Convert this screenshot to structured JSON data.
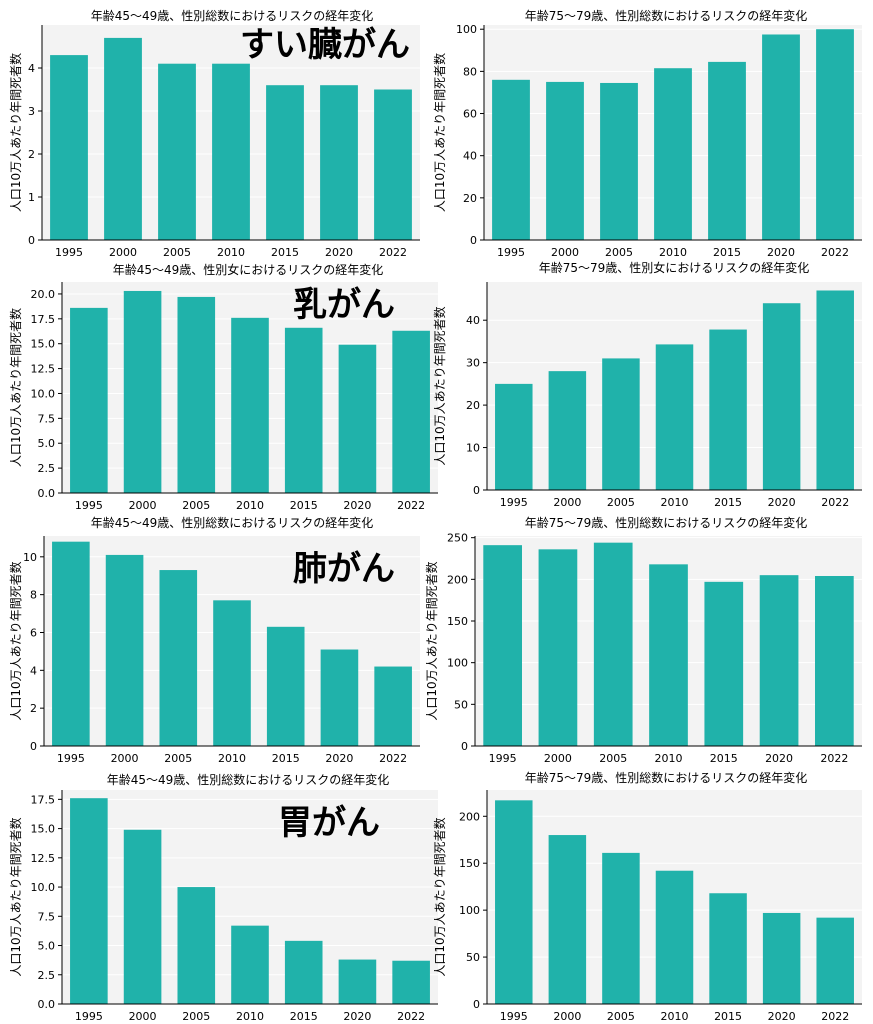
{
  "overlay_labels": {
    "pancreatic": "すい臓がん",
    "breast": "乳がん",
    "lung": "肺がん",
    "stomach": "胃がん"
  },
  "colors": {
    "bar": "#20b2aa",
    "plot_bg": "#f3f3f3",
    "grid": "#ffffff",
    "axis": "#000000"
  },
  "chart_data": [
    {
      "type": "bar",
      "title": "年齢45～49歳、性別総数におけるリスクの経年変化",
      "ylabel": "人口10万人あたり年間死者数",
      "categories": [
        "1995",
        "2000",
        "2005",
        "2010",
        "2015",
        "2020",
        "2022"
      ],
      "values": [
        4.3,
        4.7,
        4.1,
        4.1,
        3.6,
        3.6,
        3.5
      ],
      "ylim": [
        0,
        5.0
      ],
      "yticks": [
        0,
        1,
        2,
        3,
        4
      ],
      "ytick_labels": [
        "0",
        "1",
        "2",
        "3",
        "4"
      ],
      "grid": true
    },
    {
      "type": "bar",
      "title": "年齢75～79歳、性別総数におけるリスクの経年変化",
      "ylabel": "人口10万人あたり年間死者数",
      "categories": [
        "1995",
        "2000",
        "2005",
        "2010",
        "2015",
        "2020",
        "2022"
      ],
      "values": [
        76,
        75,
        74.5,
        81.5,
        84.5,
        97.5,
        100
      ],
      "ylim": [
        0,
        102
      ],
      "yticks": [
        0,
        20,
        40,
        60,
        80,
        100
      ],
      "ytick_labels": [
        "0",
        "20",
        "40",
        "60",
        "80",
        "100"
      ],
      "grid": true
    },
    {
      "type": "bar",
      "title": "年齢45～49歳、性別女におけるリスクの経年変化",
      "ylabel": "人口10万人あたり年間死者数",
      "categories": [
        "1995",
        "2000",
        "2005",
        "2010",
        "2015",
        "2020",
        "2022"
      ],
      "values": [
        18.6,
        20.3,
        19.7,
        17.6,
        16.6,
        14.9,
        16.3
      ],
      "ylim": [
        0,
        21.2
      ],
      "yticks": [
        0,
        2.5,
        5,
        7.5,
        10,
        12.5,
        15,
        17.5,
        20
      ],
      "ytick_labels": [
        "0.0",
        "2.5",
        "5.0",
        "7.5",
        "10.0",
        "12.5",
        "15.0",
        "17.5",
        "20.0"
      ],
      "grid": true
    },
    {
      "type": "bar",
      "title": "年齢75～79歳、性別女におけるリスクの経年変化",
      "ylabel": "人口10万人あたり年間死者数",
      "categories": [
        "1995",
        "2000",
        "2005",
        "2010",
        "2015",
        "2020",
        "2022"
      ],
      "values": [
        25,
        28,
        31,
        34.3,
        37.8,
        44,
        47
      ],
      "ylim": [
        0,
        49
      ],
      "yticks": [
        0,
        10,
        20,
        30,
        40
      ],
      "ytick_labels": [
        "0",
        "10",
        "20",
        "30",
        "40"
      ],
      "grid": true
    },
    {
      "type": "bar",
      "title": "年齢45～49歳、性別総数におけるリスクの経年変化",
      "ylabel": "人口10万人あたり年間死者数",
      "categories": [
        "1995",
        "2000",
        "2005",
        "2010",
        "2015",
        "2020",
        "2022"
      ],
      "values": [
        10.8,
        10.1,
        9.3,
        7.7,
        6.3,
        5.1,
        4.2
      ],
      "ylim": [
        0,
        11.1
      ],
      "yticks": [
        0,
        2,
        4,
        6,
        8,
        10
      ],
      "ytick_labels": [
        "0",
        "2",
        "4",
        "6",
        "8",
        "10"
      ],
      "grid": true
    },
    {
      "type": "bar",
      "title": "年齢75～79歳、性別総数におけるリスクの経年変化",
      "ylabel": "人口10万人あたり年間死者数",
      "categories": [
        "1995",
        "2000",
        "2005",
        "2010",
        "2015",
        "2020",
        "2022"
      ],
      "values": [
        241,
        236,
        244,
        218,
        197,
        205,
        204
      ],
      "ylim": [
        0,
        252
      ],
      "yticks": [
        0,
        50,
        100,
        150,
        200,
        250
      ],
      "ytick_labels": [
        "0",
        "50",
        "100",
        "150",
        "200",
        "250"
      ],
      "grid": true
    },
    {
      "type": "bar",
      "title": "年齢45～49歳、性別総数におけるリスクの経年変化",
      "ylabel": "人口10万人あたり年間死者数",
      "categories": [
        "1995",
        "2000",
        "2005",
        "2010",
        "2015",
        "2020",
        "2022"
      ],
      "values": [
        17.6,
        14.9,
        10,
        6.7,
        5.4,
        3.8,
        3.7
      ],
      "ylim": [
        0,
        18.3
      ],
      "yticks": [
        0,
        2.5,
        5,
        7.5,
        10,
        12.5,
        15,
        17.5
      ],
      "ytick_labels": [
        "0.0",
        "2.5",
        "5.0",
        "7.5",
        "10.0",
        "12.5",
        "15.0",
        "17.5"
      ],
      "grid": true
    },
    {
      "type": "bar",
      "title": "年齢75～79歳、性別総数におけるリスクの経年変化",
      "ylabel": "人口10万人あたり年間死者数",
      "categories": [
        "1995",
        "2000",
        "2005",
        "2010",
        "2015",
        "2020",
        "2022"
      ],
      "values": [
        217,
        180,
        161,
        142,
        118,
        97,
        92
      ],
      "ylim": [
        0,
        228
      ],
      "yticks": [
        0,
        50,
        100,
        150,
        200
      ],
      "ytick_labels": [
        "0",
        "50",
        "100",
        "150",
        "200"
      ],
      "grid": true
    }
  ]
}
